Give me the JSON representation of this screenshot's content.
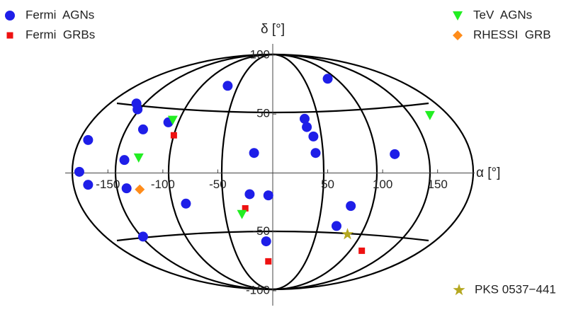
{
  "chart_data": {
    "type": "scatter",
    "x_label": "α [°]",
    "y_label": "δ [°]",
    "xlim": [
      -185,
      185
    ],
    "ylim": [
      -100,
      100
    ],
    "xticks": [
      -150,
      -100,
      -50,
      50,
      100,
      150
    ],
    "yticks": [
      -100,
      -50,
      50,
      100
    ],
    "series": [
      {
        "name": "Fermi  AGNs",
        "color": "#1e1ee8",
        "marker": "circle",
        "legend": "top-left",
        "x": [
          50,
          -41,
          -124,
          -123,
          -95,
          -118,
          -168,
          29,
          31,
          37,
          39,
          111,
          -17,
          -135,
          -176,
          -168,
          -133,
          -21,
          -4,
          -79,
          71,
          58,
          -118,
          -6
        ],
        "y": [
          80,
          74,
          59,
          54,
          43,
          37,
          28,
          46,
          39,
          31,
          17,
          16,
          17,
          11,
          1,
          -10,
          -13,
          -18,
          -19,
          -26,
          -28,
          -45,
          -54,
          -58
        ]
      },
      {
        "name": "Fermi  GRBs",
        "color": "#ee1111",
        "marker": "square",
        "legend": "top-left",
        "x": [
          -90,
          -25,
          -4,
          81
        ],
        "y": [
          32,
          -30,
          -75,
          -66
        ]
      },
      {
        "name": "TeV  AGNs",
        "color": "#22ee22",
        "marker": "triangle",
        "legend": "top-right",
        "x": [
          -91,
          -122,
          143,
          -28
        ],
        "y": [
          45,
          13,
          49,
          -35
        ]
      },
      {
        "name": "RHESSI  GRB",
        "color": "#ff8c1a",
        "marker": "diamond",
        "legend": "top-right",
        "x": [
          -121
        ],
        "y": [
          -14
        ]
      },
      {
        "name": "PKS 0537−441",
        "color": "#b5a820",
        "marker": "star",
        "legend": "bottom-right",
        "x": [
          68
        ],
        "y": [
          -52
        ]
      }
    ]
  }
}
